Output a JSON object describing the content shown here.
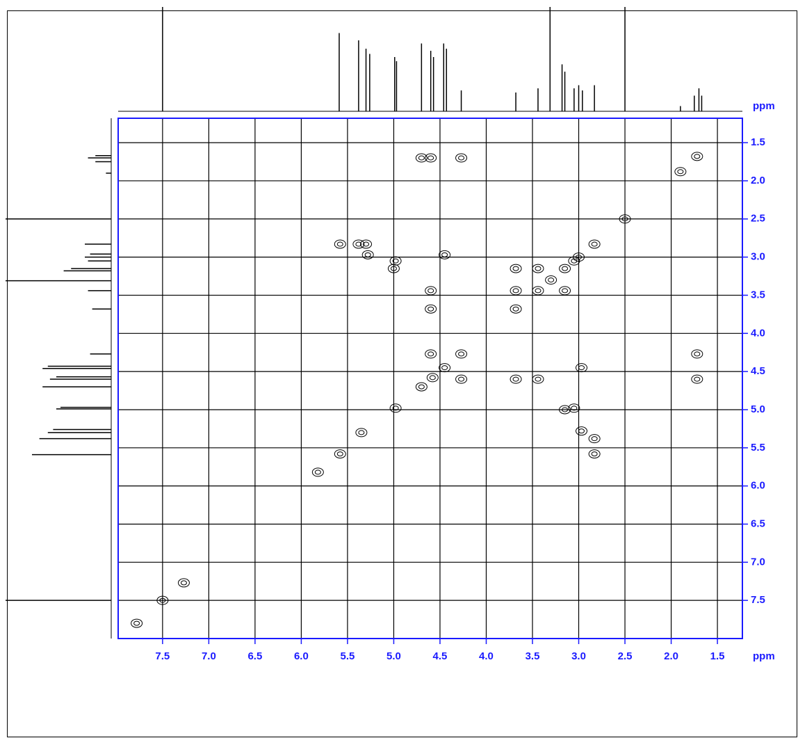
{
  "chart_data": {
    "type": "scatter",
    "xlabel": "ppm",
    "ylabel": "ppm",
    "xlim": [
      7.98,
      1.23
    ],
    "ylim": [
      1.18,
      8.0
    ],
    "xticks": [
      7.5,
      {
        "value": 7,
        "label": "7.0"
      },
      6.5,
      {
        "value": 6,
        "label": "6.0"
      },
      5.5,
      {
        "value": 5,
        "label": "5.0"
      },
      4.5,
      {
        "value": 4,
        "label": "4.0"
      },
      3.5,
      {
        "value": 3,
        "label": "3.0"
      },
      2.5,
      {
        "value": 2,
        "label": "2.0"
      },
      1.5
    ],
    "yticks": [
      1.5,
      {
        "value": 2,
        "label": "2.0"
      },
      2.5,
      {
        "value": 3,
        "label": "3.0"
      },
      3.5,
      {
        "value": 4,
        "label": "4.0"
      },
      4.5,
      {
        "value": 5,
        "label": "5.0"
      },
      5.5,
      {
        "value": 6,
        "label": "6.0"
      },
      6.5,
      {
        "value": 7,
        "label": "7.0"
      },
      7.5
    ],
    "grid": true,
    "color": "#000000",
    "x": [
      1.72,
      2.5,
      2.83,
      3.0,
      3.05,
      3.15,
      3.3,
      3.44,
      3.68,
      4.27,
      4.45,
      4.58,
      4.7,
      4.98,
      5.35,
      5.58,
      7.5,
      4.6,
      4.7,
      4.27,
      1.72,
      1.72,
      5.38,
      5.3,
      5.58,
      5.28,
      4.98,
      5.0,
      4.45,
      4.6,
      4.6,
      2.83,
      2.83,
      2.97,
      3.05,
      3.15,
      2.97,
      3.44,
      3.68,
      3.44,
      3.68,
      3.15,
      3.68,
      4.6,
      4.27,
      1.9,
      7.27,
      7.78,
      5.82
    ],
    "values": [
      1.68,
      2.5,
      2.83,
      3.0,
      3.05,
      3.15,
      3.3,
      3.44,
      3.68,
      4.27,
      4.45,
      4.58,
      4.7,
      4.98,
      5.3,
      5.58,
      7.5,
      1.7,
      1.7,
      1.7,
      4.27,
      4.6,
      2.83,
      2.83,
      2.83,
      2.97,
      3.05,
      3.15,
      2.97,
      3.44,
      3.68,
      5.38,
      5.58,
      5.28,
      4.98,
      5.0,
      4.45,
      4.6,
      4.6,
      3.15,
      3.44,
      3.44,
      3.15,
      4.27,
      4.6,
      1.88,
      7.27,
      7.8,
      5.82
    ],
    "projection": {
      "x": [
        7.5,
        5.59,
        5.38,
        5.3,
        5.26,
        4.99,
        4.97,
        4.7,
        4.6,
        4.57,
        4.46,
        4.43,
        4.27,
        3.68,
        3.44,
        3.31,
        3.18,
        3.15,
        3.05,
        3.0,
        2.96,
        2.83,
        2.5,
        1.9,
        1.75,
        1.7,
        1.67
      ],
      "values": [
        100,
        75,
        68,
        60,
        55,
        52,
        48,
        65,
        58,
        52,
        65,
        60,
        20,
        18,
        22,
        100,
        45,
        38,
        22,
        25,
        20,
        25,
        100,
        5,
        15,
        22,
        15
      ]
    }
  }
}
